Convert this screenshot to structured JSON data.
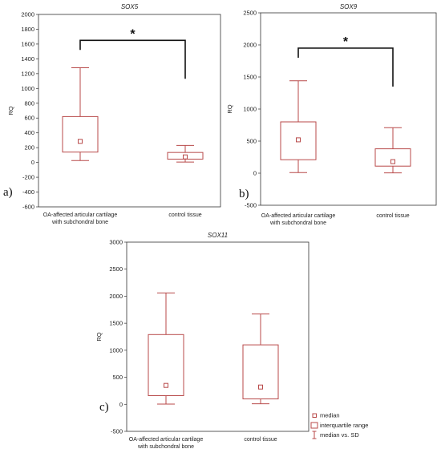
{
  "chart_data": [
    {
      "type": "boxplot",
      "panel_label": "a)",
      "title": "SOX5",
      "ylabel": "RQ",
      "ylim": [
        -600,
        2000
      ],
      "yticks": [
        -600,
        -400,
        -200,
        0,
        200,
        400,
        600,
        800,
        1000,
        1200,
        1400,
        1600,
        1800,
        2000
      ],
      "categories": [
        [
          "OA-affected articular cartilage",
          "with subchondral bone"
        ],
        [
          "control tissue"
        ]
      ],
      "boxes": [
        {
          "median": 285,
          "q1": 140,
          "q3": 620,
          "low": 25,
          "high": 1280
        },
        {
          "median": 75,
          "q1": 45,
          "q3": 135,
          "low": 5,
          "high": 230
        }
      ],
      "significance": "*",
      "significance_y": 1650
    },
    {
      "type": "boxplot",
      "panel_label": "b)",
      "title": "SOX9",
      "ylabel": "RQ",
      "ylim": [
        -500,
        2500
      ],
      "yticks": [
        -500,
        0,
        500,
        1000,
        1500,
        2000,
        2500
      ],
      "categories": [
        [
          "OA-affected articular cartilage",
          "with subchondral bone"
        ],
        [
          "control tissue"
        ]
      ],
      "boxes": [
        {
          "median": 520,
          "q1": 210,
          "q3": 800,
          "low": 10,
          "high": 1440
        },
        {
          "median": 180,
          "q1": 110,
          "q3": 380,
          "low": 5,
          "high": 710
        }
      ],
      "significance": "*",
      "significance_y": 1950
    },
    {
      "type": "boxplot",
      "panel_label": "c)",
      "title": "SOX11",
      "ylabel": "RQ",
      "ylim": [
        -500,
        3000
      ],
      "yticks": [
        -500,
        0,
        500,
        1000,
        1500,
        2000,
        2500,
        3000
      ],
      "categories": [
        [
          "OA-affected articular cartilage",
          "with subchondral bone"
        ],
        [
          "control tissue"
        ]
      ],
      "boxes": [
        {
          "median": 350,
          "q1": 160,
          "q3": 1290,
          "low": 5,
          "high": 2060
        },
        {
          "median": 320,
          "q1": 100,
          "q3": 1100,
          "low": 10,
          "high": 1670
        }
      ]
    }
  ],
  "legend": {
    "items": [
      "median",
      "interquartile range",
      "median vs. SD"
    ]
  },
  "colors": {
    "box": "#b84a4a",
    "bracket": "#111111"
  }
}
